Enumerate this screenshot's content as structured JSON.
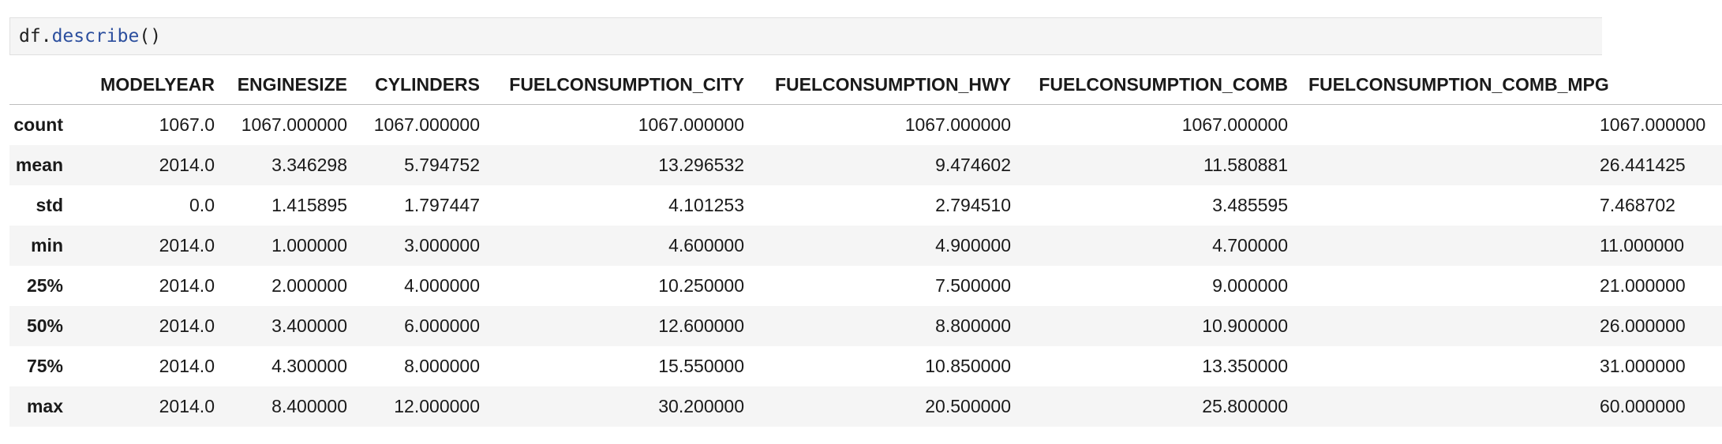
{
  "code_cell": {
    "object": "df",
    "dot": ".",
    "method": "describe",
    "parens": "()"
  },
  "table": {
    "index_header": "",
    "columns": [
      "MODELYEAR",
      "ENGINESIZE",
      "CYLINDERS",
      "FUELCONSUMPTION_CITY",
      "FUELCONSUMPTION_HWY",
      "FUELCONSUMPTION_COMB",
      "FUELCONSUMPTION_COMB_MPG"
    ],
    "rows": [
      {
        "label": "count",
        "values": [
          "1067.0",
          "1067.000000",
          "1067.000000",
          "1067.000000",
          "1067.000000",
          "1067.000000",
          "1067.000000"
        ]
      },
      {
        "label": "mean",
        "values": [
          "2014.0",
          "3.346298",
          "5.794752",
          "13.296532",
          "9.474602",
          "11.580881",
          "26.441425"
        ]
      },
      {
        "label": "std",
        "values": [
          "0.0",
          "1.415895",
          "1.797447",
          "4.101253",
          "2.794510",
          "3.485595",
          "7.468702"
        ]
      },
      {
        "label": "min",
        "values": [
          "2014.0",
          "1.000000",
          "3.000000",
          "4.600000",
          "4.900000",
          "4.700000",
          "11.000000"
        ]
      },
      {
        "label": "25%",
        "values": [
          "2014.0",
          "2.000000",
          "4.000000",
          "10.250000",
          "7.500000",
          "9.000000",
          "21.000000"
        ]
      },
      {
        "label": "50%",
        "values": [
          "2014.0",
          "3.400000",
          "6.000000",
          "12.600000",
          "8.800000",
          "10.900000",
          "26.000000"
        ]
      },
      {
        "label": "75%",
        "values": [
          "2014.0",
          "4.300000",
          "8.000000",
          "15.550000",
          "10.850000",
          "13.350000",
          "31.000000"
        ]
      },
      {
        "label": "max",
        "values": [
          "2014.0",
          "8.400000",
          "12.000000",
          "30.200000",
          "20.500000",
          "25.800000",
          "60.000000"
        ]
      }
    ]
  }
}
